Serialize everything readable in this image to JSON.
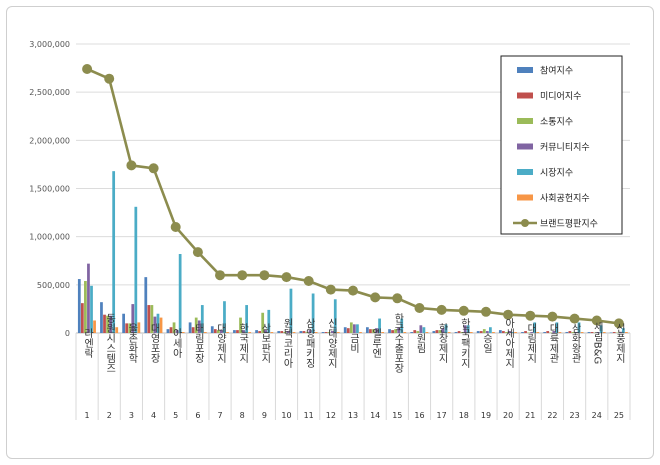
{
  "chart_data": {
    "type": "bar",
    "x": [
      "1",
      "2",
      "3",
      "4",
      "5",
      "6",
      "7",
      "8",
      "9",
      "10",
      "11",
      "12",
      "13",
      "14",
      "15",
      "16",
      "17",
      "18",
      "19",
      "20",
      "21",
      "22",
      "23",
      "24",
      "25"
    ],
    "categories": [
      "라엔락",
      "동원시스템즈",
      "율촌화학",
      "대영포장",
      "아세아",
      "태림포장",
      "대양제지",
      "한국제지",
      "삼보판지",
      "원텍코리아",
      "삼양패키징",
      "신대양제지",
      "금비",
      "엘루엔",
      "한국수출포장",
      "원림",
      "한창제지",
      "한국팩키지",
      "승일",
      "아세아제지",
      "대림제지",
      "대륙제관",
      "삼화왕관",
      "세림B&G",
      "신풍제지"
    ],
    "ylim": [
      0,
      3000000
    ],
    "yticks": [
      "0",
      "500,000",
      "1,000,000",
      "1,500,000",
      "2,000,000",
      "2,500,000",
      "3,000,000"
    ],
    "ytick_values": [
      0,
      500000,
      1000000,
      1500000,
      2000000,
      2500000,
      3000000
    ],
    "grid": true,
    "legend_position": "right",
    "series": [
      {
        "name": "참여지수",
        "color": "#4f81bd",
        "values": [
          560000,
          320000,
          200000,
          580000,
          40000,
          110000,
          70000,
          30000,
          30000,
          20000,
          20000,
          10000,
          60000,
          60000,
          40000,
          10000,
          20000,
          10000,
          20000,
          30000,
          10000,
          10000,
          10000,
          10000,
          5000
        ]
      },
      {
        "name": "미디어지수",
        "color": "#c0504d",
        "values": [
          310000,
          190000,
          100000,
          290000,
          60000,
          60000,
          40000,
          30000,
          20000,
          20000,
          20000,
          10000,
          50000,
          40000,
          30000,
          30000,
          30000,
          20000,
          20000,
          20000,
          20000,
          20000,
          20000,
          10000,
          10000
        ]
      },
      {
        "name": "소통지수",
        "color": "#9bbb59",
        "values": [
          540000,
          180000,
          100000,
          290000,
          110000,
          160000,
          30000,
          160000,
          210000,
          10000,
          10000,
          10000,
          110000,
          40000,
          40000,
          20000,
          30000,
          10000,
          40000,
          10000,
          5000,
          5000,
          10000,
          5000,
          5000
        ]
      },
      {
        "name": "커뮤니티지수",
        "color": "#8064a2",
        "values": [
          720000,
          180000,
          300000,
          170000,
          30000,
          130000,
          30000,
          30000,
          30000,
          20000,
          30000,
          20000,
          90000,
          50000,
          60000,
          80000,
          50000,
          80000,
          20000,
          20000,
          10000,
          20000,
          10000,
          10000,
          10000
        ]
      },
      {
        "name": "시장지수",
        "color": "#4bacc6",
        "values": [
          490000,
          1680000,
          1310000,
          200000,
          820000,
          290000,
          330000,
          290000,
          240000,
          460000,
          410000,
          350000,
          90000,
          150000,
          150000,
          60000,
          90000,
          80000,
          60000,
          10000,
          110000,
          110000,
          110000,
          80000,
          50000
        ]
      },
      {
        "name": "사회공헌지수",
        "color": "#f79646",
        "values": [
          130000,
          60000,
          110000,
          160000,
          10000,
          10000,
          10000,
          10000,
          10000,
          10000,
          10000,
          10000,
          10000,
          10000,
          10000,
          10000,
          10000,
          10000,
          10000,
          10000,
          10000,
          10000,
          10000,
          10000,
          10000
        ]
      }
    ],
    "line_series": {
      "name": "브랜드평판지수",
      "color": "#8c8c4e",
      "values": [
        2740000,
        2640000,
        1740000,
        1710000,
        1100000,
        840000,
        600000,
        600000,
        600000,
        580000,
        540000,
        450000,
        440000,
        370000,
        360000,
        260000,
        240000,
        230000,
        220000,
        190000,
        180000,
        170000,
        150000,
        130000,
        100000
      ]
    }
  }
}
